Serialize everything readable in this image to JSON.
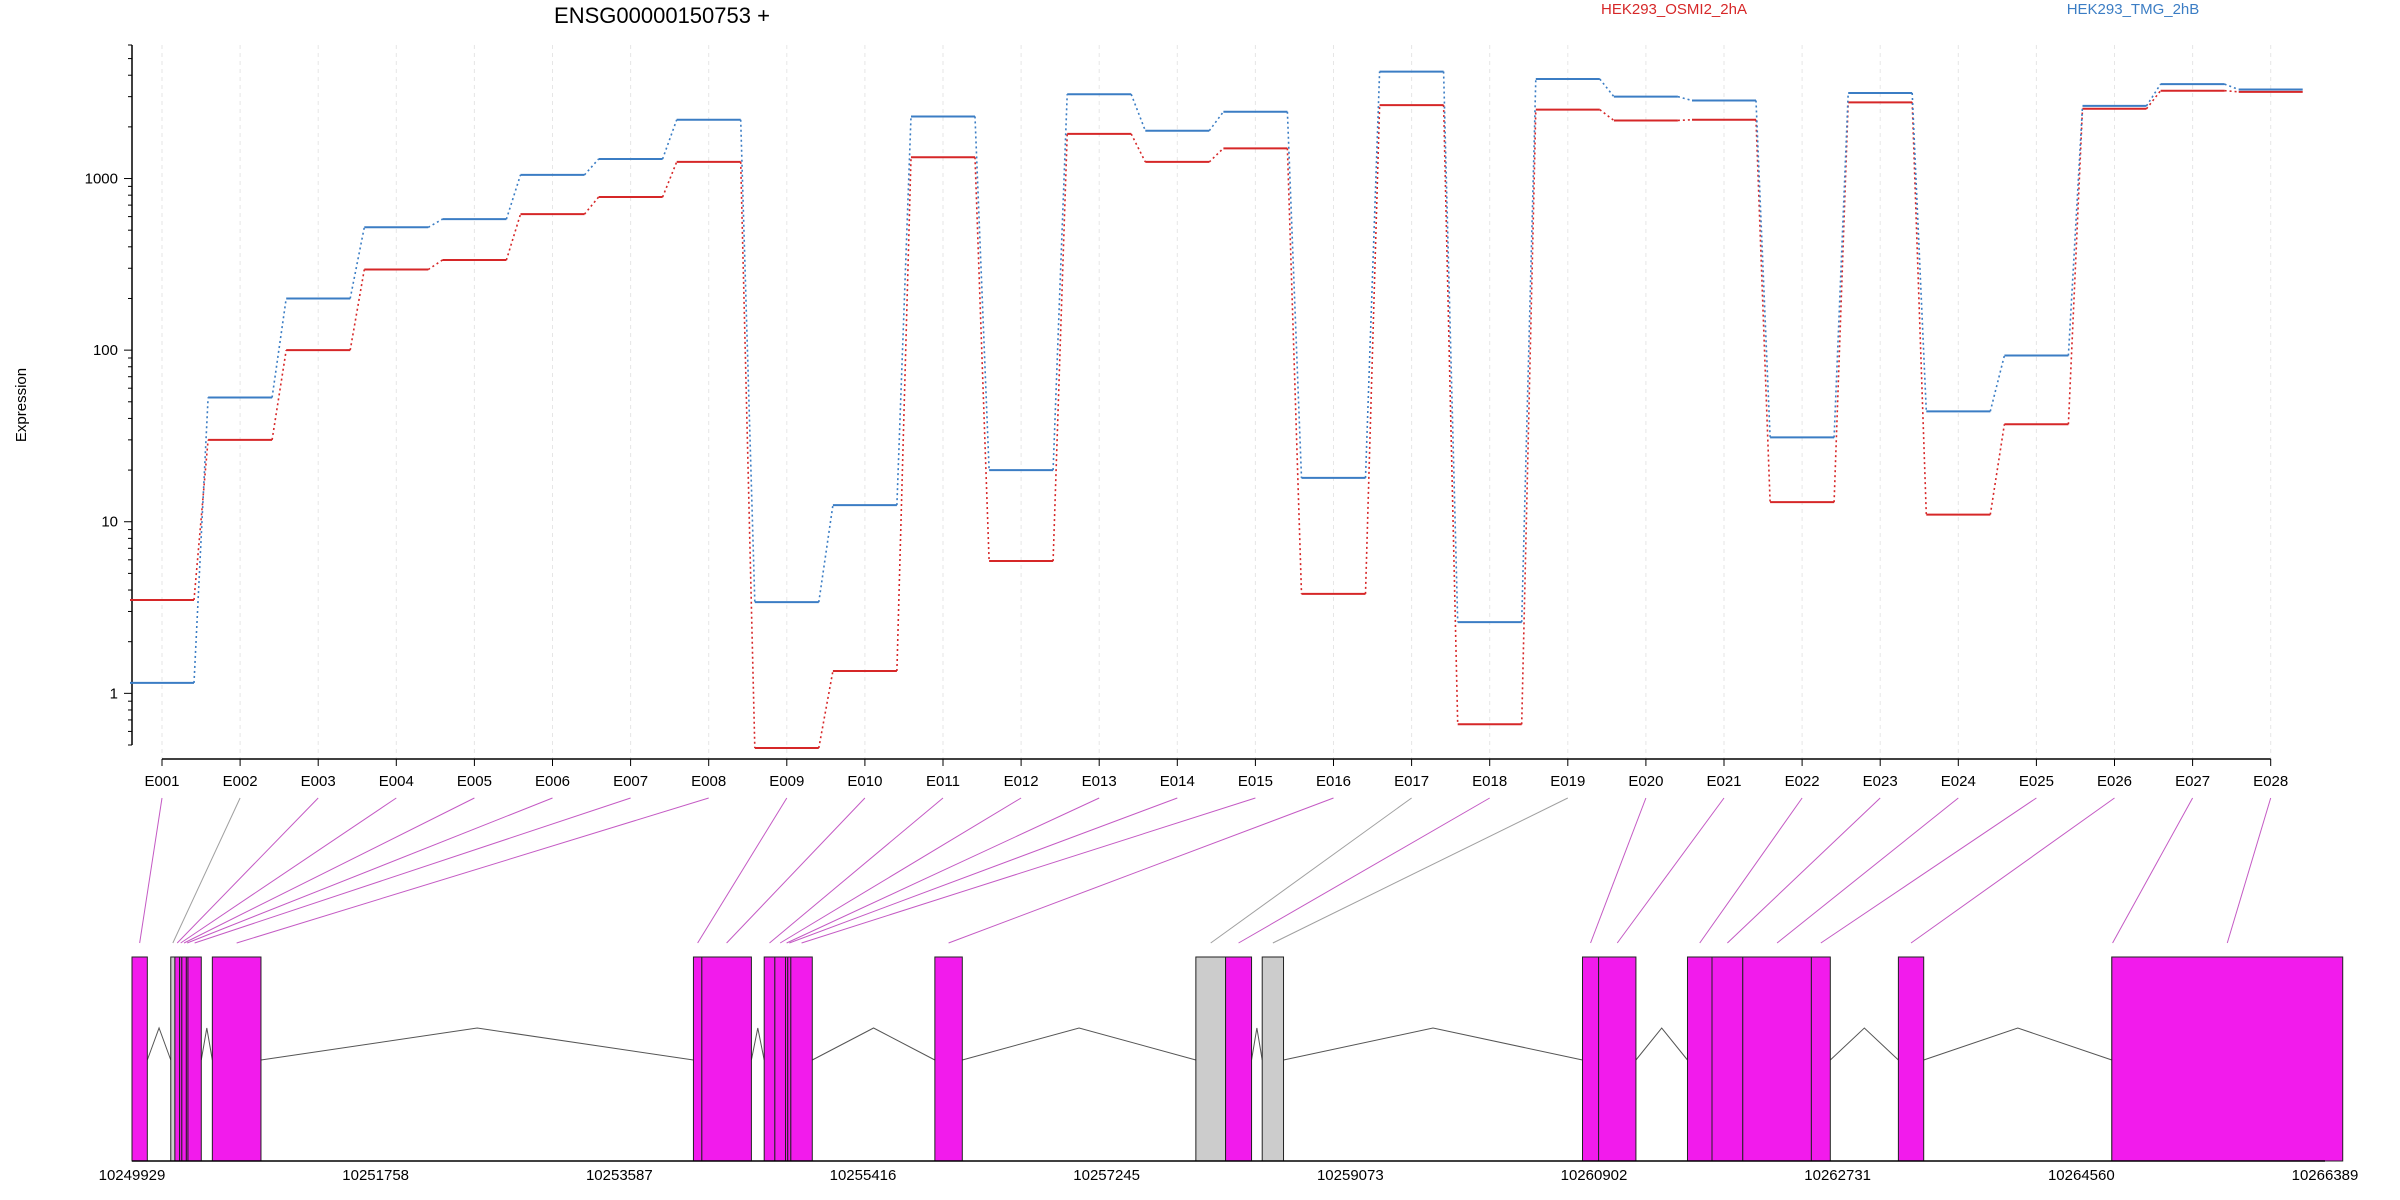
{
  "chart_data": {
    "type": "line",
    "title": "ENSG00000150753 +",
    "ylabel": "Expression",
    "yscale": "log",
    "ylim": [
      0.5,
      6000
    ],
    "yticks": [
      {
        "value": 1,
        "label": "1"
      },
      {
        "value": 10,
        "label": "10"
      },
      {
        "value": 100,
        "label": "100"
      },
      {
        "value": 1000,
        "label": "1000"
      }
    ],
    "categories": [
      "E001",
      "E002",
      "E003",
      "E004",
      "E005",
      "E006",
      "E007",
      "E008",
      "E009",
      "E010",
      "E011",
      "E012",
      "E013",
      "E014",
      "E015",
      "E016",
      "E017",
      "E018",
      "E019",
      "E020",
      "E021",
      "E022",
      "E023",
      "E024",
      "E025",
      "E026",
      "E027",
      "E028"
    ],
    "legend_position": "top",
    "grid": "vertical-dashed",
    "series": [
      {
        "name": "HEK293_OSMI2_2hA",
        "color": "#d62728",
        "values": [
          3.5,
          30,
          100,
          295,
          335,
          620,
          780,
          1250,
          0.48,
          1.35,
          1330,
          5.9,
          1820,
          1250,
          1500,
          3.8,
          2680,
          0.66,
          2520,
          2180,
          2200,
          13,
          2780,
          11,
          37,
          2550,
          3250,
          3200
        ]
      },
      {
        "name": "HEK293_TMG_2hB",
        "color": "#3b7dc4",
        "values": [
          1.15,
          53,
          200,
          520,
          580,
          1050,
          1300,
          2200,
          3.4,
          12.5,
          2300,
          20,
          3100,
          1900,
          2450,
          18,
          4200,
          2.6,
          3800,
          3000,
          2850,
          31,
          3150,
          44,
          93,
          2650,
          3550,
          3300
        ]
      }
    ],
    "gene_model": {
      "coordinate_labels": [
        "10249929",
        "10251758",
        "10253587",
        "10255416",
        "10257245",
        "10259073",
        "10260902",
        "10262731",
        "10264560",
        "10266389"
      ],
      "genomic_range": [
        10249929,
        10266389
      ],
      "exons": [
        {
          "id": "E001",
          "start": 10249929,
          "end": 10250044,
          "color": "#f21bec"
        },
        {
          "id": "E002",
          "start": 10250220,
          "end": 10250251,
          "color": "#cccccc"
        },
        {
          "id": "E003",
          "start": 10250251,
          "end": 10250286,
          "color": "#f21bec"
        },
        {
          "id": "E004",
          "start": 10250286,
          "end": 10250303,
          "color": "#f21bec"
        },
        {
          "id": "E005",
          "start": 10250303,
          "end": 10250337,
          "color": "#f21bec"
        },
        {
          "id": "E006",
          "start": 10250337,
          "end": 10250349,
          "color": "#f21bec"
        },
        {
          "id": "E007",
          "start": 10250349,
          "end": 10250449,
          "color": "#f21bec"
        },
        {
          "id": "E008",
          "start": 10250532,
          "end": 10250897,
          "color": "#f21bec"
        },
        {
          "id": "E009",
          "start": 10254143,
          "end": 10254206,
          "color": "#f21bec"
        },
        {
          "id": "E010",
          "start": 10254206,
          "end": 10254578,
          "color": "#f21bec"
        },
        {
          "id": "E011",
          "start": 10254674,
          "end": 10254754,
          "color": "#f21bec"
        },
        {
          "id": "E012",
          "start": 10254754,
          "end": 10254834,
          "color": "#f21bec"
        },
        {
          "id": "E013",
          "start": 10254834,
          "end": 10254851,
          "color": "#f21bec"
        },
        {
          "id": "E014",
          "start": 10254851,
          "end": 10254874,
          "color": "#f21bec"
        },
        {
          "id": "E015",
          "start": 10254874,
          "end": 10255035,
          "color": "#f21bec"
        },
        {
          "id": "E016",
          "start": 10255955,
          "end": 10256161,
          "color": "#f21bec"
        },
        {
          "id": "E017",
          "start": 10257914,
          "end": 10258137,
          "color": "#cccccc"
        },
        {
          "id": "E018",
          "start": 10258137,
          "end": 10258332,
          "color": "#f21bec"
        },
        {
          "id": "E019",
          "start": 10258412,
          "end": 10258572,
          "color": "#cccccc"
        },
        {
          "id": "E020",
          "start": 10260816,
          "end": 10260937,
          "color": "#f21bec"
        },
        {
          "id": "E021",
          "start": 10260937,
          "end": 10261217,
          "color": "#f21bec"
        },
        {
          "id": "E022",
          "start": 10261604,
          "end": 10261788,
          "color": "#f21bec"
        },
        {
          "id": "E023",
          "start": 10261788,
          "end": 10262019,
          "color": "#f21bec"
        },
        {
          "id": "E024",
          "start": 10262019,
          "end": 10262534,
          "color": "#f21bec"
        },
        {
          "id": "E025",
          "start": 10262534,
          "end": 10262676,
          "color": "#f21bec"
        },
        {
          "id": "E026",
          "start": 10263187,
          "end": 10263377,
          "color": "#f21bec"
        },
        {
          "id": "E027",
          "start": 10264789,
          "end": 10264789,
          "color": "#f21bec"
        },
        {
          "id": "E028",
          "start": 10264789,
          "end": 10266522,
          "color": "#f21bec"
        }
      ],
      "connector_colors": {
        "expressed": "#c45ac4",
        "not_expressed": "#a0a0a0"
      }
    }
  }
}
